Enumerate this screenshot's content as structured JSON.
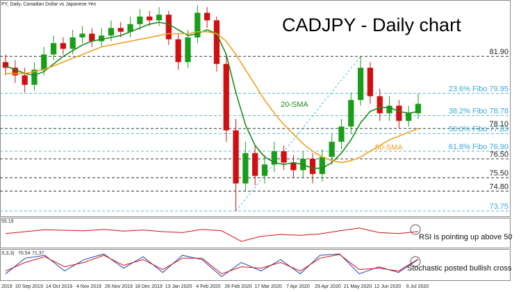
{
  "chart_data": {
    "type": "candlestick",
    "header": "PY, Daily, Canadian Dollar vs Japanese Yen",
    "title": "CADJPY - Daily chart",
    "ylim": [
      73.5,
      84.8
    ],
    "open": [
      81.6,
      81.3,
      80.9,
      80.4,
      81.2,
      82.0,
      82.6,
      82.3,
      82.9,
      83.1,
      82.7,
      83.0,
      83.4,
      83.2,
      83.6,
      84.0,
      83.8,
      84.1,
      82.8,
      81.6,
      82.9,
      84.2,
      83.8,
      81.5,
      78.0,
      75.2,
      76.8,
      75.6,
      76.2,
      76.9,
      76.3,
      75.9,
      76.5,
      75.7,
      76.6,
      77.4,
      78.2,
      79.6,
      81.3,
      79.8,
      78.9,
      79.3,
      78.5,
      78.9
    ],
    "high": [
      82.0,
      81.7,
      81.3,
      81.6,
      82.4,
      83.0,
      82.9,
      83.3,
      83.5,
      83.4,
      83.4,
      83.8,
      83.7,
      84.0,
      84.4,
      84.3,
      84.5,
      84.3,
      83.1,
      83.3,
      84.6,
      84.5,
      84.0,
      81.9,
      78.6,
      77.4,
      77.2,
      76.7,
      77.4,
      77.2,
      76.7,
      76.9,
      76.8,
      77.0,
      77.8,
      78.6,
      80.0,
      81.9,
      81.6,
      80.2,
      79.8,
      79.6,
      79.3,
      79.95
    ],
    "low": [
      80.9,
      80.5,
      80.0,
      80.1,
      80.9,
      81.7,
      82.0,
      82.0,
      82.6,
      82.4,
      82.4,
      82.7,
      82.9,
      82.9,
      83.3,
      83.5,
      83.5,
      82.5,
      81.2,
      81.3,
      82.6,
      83.4,
      81.1,
      77.4,
      73.75,
      74.8,
      75.1,
      75.2,
      75.8,
      75.9,
      75.5,
      75.5,
      75.2,
      75.3,
      76.2,
      77.0,
      77.8,
      79.3,
      79.4,
      78.5,
      78.5,
      78.1,
      78.2,
      78.6
    ],
    "close": [
      81.3,
      80.9,
      80.4,
      81.2,
      82.0,
      82.6,
      82.3,
      82.9,
      83.1,
      82.7,
      83.0,
      83.4,
      83.2,
      83.6,
      84.0,
      83.8,
      84.1,
      82.8,
      81.6,
      82.9,
      84.2,
      83.8,
      81.5,
      78.0,
      75.2,
      76.8,
      75.6,
      76.2,
      76.9,
      76.3,
      75.9,
      76.5,
      75.7,
      76.6,
      77.4,
      78.2,
      79.6,
      81.3,
      79.8,
      78.9,
      79.3,
      78.5,
      78.9,
      79.4
    ],
    "up_color": "#1a9e1a",
    "down_color": "#d01010",
    "series": [
      {
        "name": "20-SMA",
        "color": "#1a8a1a",
        "values": [
          81.4,
          81.2,
          81.0,
          80.9,
          81.1,
          81.5,
          81.9,
          82.2,
          82.5,
          82.7,
          82.8,
          82.9,
          83.0,
          83.2,
          83.4,
          83.6,
          83.7,
          83.6,
          83.3,
          83.0,
          83.1,
          83.3,
          83.1,
          82.0,
          80.0,
          78.3,
          77.2,
          76.6,
          76.3,
          76.2,
          76.3,
          76.2,
          76.0,
          76.0,
          76.3,
          76.8,
          77.5,
          78.4,
          79.0,
          79.2,
          79.2,
          79.0,
          78.9,
          79.0
        ]
      },
      {
        "name": "50-SMA",
        "color": "#f0a020",
        "values": [
          81.0,
          81.0,
          81.0,
          81.1,
          81.2,
          81.4,
          81.6,
          81.8,
          82.0,
          82.2,
          82.4,
          82.5,
          82.6,
          82.7,
          82.8,
          82.9,
          83.0,
          83.1,
          83.1,
          83.1,
          83.2,
          83.2,
          83.1,
          82.7,
          82.0,
          81.2,
          80.4,
          79.6,
          78.9,
          78.3,
          77.8,
          77.3,
          76.9,
          76.6,
          76.4,
          76.3,
          76.4,
          76.6,
          76.9,
          77.2,
          77.5,
          77.7,
          77.9,
          78.1
        ]
      }
    ],
    "levels": [
      {
        "value": 81.9,
        "label": "81.90",
        "color": "#333333"
      },
      {
        "value": 79.95,
        "label": "23.6% Fibo 79.95",
        "color": "#4cb8e0"
      },
      {
        "value": 78.78,
        "label": "38.2% Fibo 78.78",
        "color": "#4cb8e0"
      },
      {
        "value": 78.1,
        "label": "78.10",
        "color": "#333333"
      },
      {
        "value": 77.83,
        "label": "50.0% Fibo 77.83",
        "color": "#4cb8e0"
      },
      {
        "value": 76.9,
        "label": "61.8% Fibo 76.90",
        "color": "#4cb8e0"
      },
      {
        "value": 76.5,
        "label": "76.50",
        "color": "#333333"
      },
      {
        "value": 75.5,
        "label": "75.50",
        "color": "#333333"
      },
      {
        "value": 74.8,
        "label": "74.80",
        "color": "#333333"
      },
      {
        "value": 73.75,
        "label": "73.75",
        "color": "#4cb8e0"
      }
    ],
    "x_labels": [
      "2019",
      "20 Sep 2019",
      "14 Oct 2019",
      "4 Nov 2019",
      "26 Nov 2019",
      "18 Dec 2019",
      "13 Jan 2020",
      "4 Feb 2020",
      "26 Feb 2020",
      "17 Mar 2020",
      "7 Apr 2020",
      "29 Apr 2020",
      "21 May 2020",
      "12 Jun 2020",
      "6 Jul 2020"
    ],
    "rsi": {
      "color": "#d01010",
      "ylim": [
        0,
        100
      ],
      "annotation": "RSI is pointing up above 50",
      "values": [
        48,
        55,
        62,
        60,
        58,
        63,
        57,
        61,
        55,
        52,
        63,
        58,
        20,
        38,
        45,
        42,
        47,
        58,
        68,
        52,
        48,
        55.19
      ]
    },
    "stochastic": {
      "label": "S,3,3)",
      "ylim": [
        0,
        100
      ],
      "annotation": "Stochastic posted bullish cross",
      "series": [
        {
          "color": "#1a3fb0",
          "values": [
            20,
            75,
            85,
            30,
            70,
            90,
            40,
            80,
            25,
            85,
            70,
            10,
            60,
            30,
            70,
            20,
            85,
            90,
            20,
            45,
            25,
            70.54
          ]
        },
        {
          "color": "#d01010",
          "values": [
            30,
            60,
            80,
            45,
            60,
            85,
            50,
            70,
            35,
            75,
            75,
            20,
            45,
            40,
            60,
            30,
            75,
            88,
            35,
            40,
            30,
            71.37
          ]
        }
      ]
    }
  }
}
